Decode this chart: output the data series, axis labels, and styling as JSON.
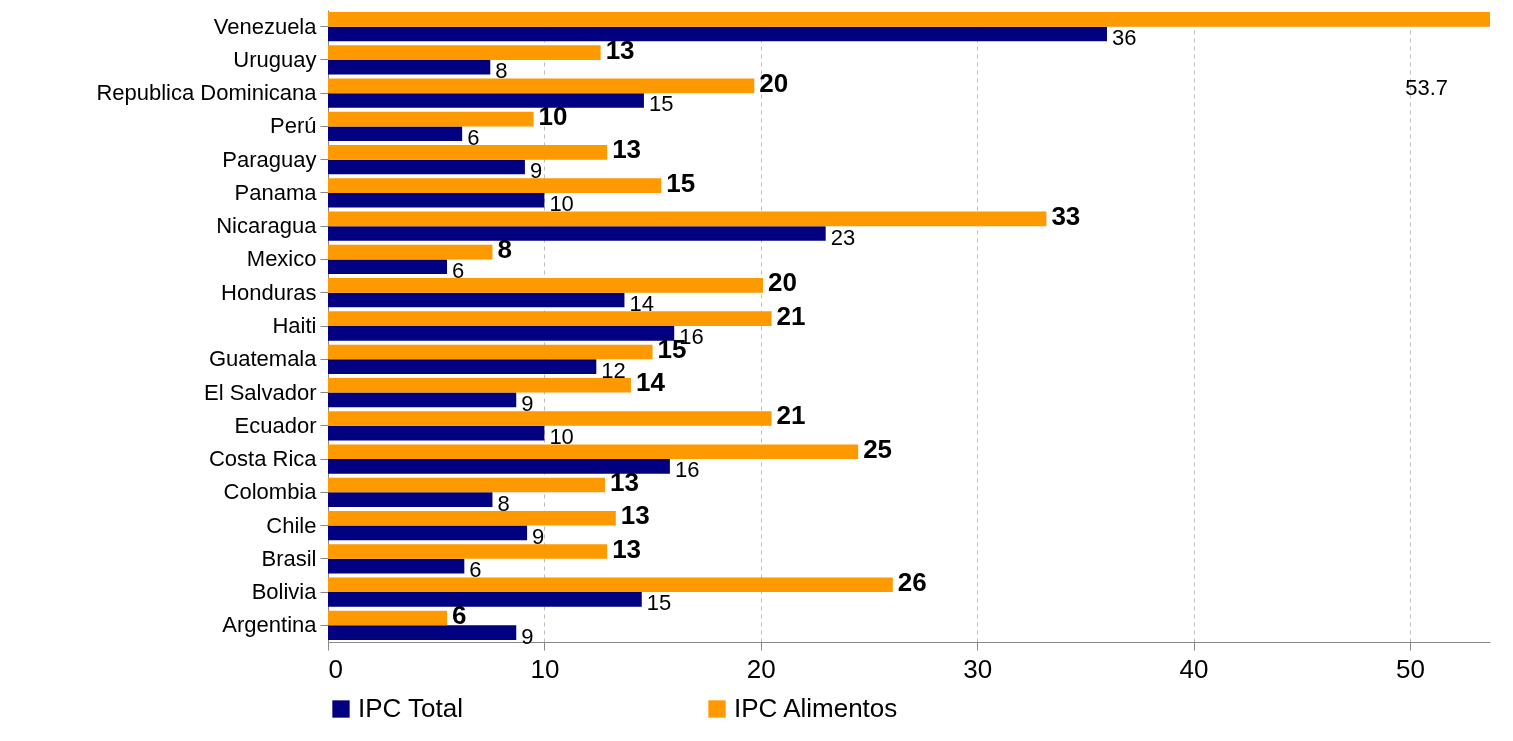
{
  "chart_data": {
    "type": "bar",
    "orientation": "horizontal",
    "categories": [
      "Venezuela",
      "Uruguay",
      "Republica Dominicana",
      "Perú",
      "Paraguay",
      "Panama",
      "Nicaragua",
      "Mexico",
      "Honduras",
      "Haiti",
      "Guatemala",
      "El Salvador",
      "Ecuador",
      "Costa Rica",
      "Colombia",
      "Chile",
      "Brasil",
      "Bolivia",
      "Argentina"
    ],
    "series": [
      {
        "name": "IPC Total",
        "color": "#000080",
        "values": [
          36.0,
          7.5,
          14.6,
          6.2,
          9.1,
          10.0,
          23.0,
          5.5,
          13.7,
          16.0,
          12.4,
          8.7,
          10.0,
          15.8,
          7.6,
          9.2,
          6.3,
          14.5,
          8.7
        ],
        "value_labels": [
          "36",
          "8",
          "15",
          "6",
          "9",
          "10",
          "23",
          "6",
          "14",
          "16",
          "12",
          "9",
          "10",
          "16",
          "8",
          "9",
          "6",
          "15",
          "9"
        ]
      },
      {
        "name": "IPC Alimentos",
        "color": "#ff9900",
        "values": [
          53.7,
          12.6,
          19.7,
          9.5,
          12.9,
          15.4,
          33.2,
          7.6,
          20.1,
          20.5,
          15.0,
          14.0,
          20.5,
          24.5,
          12.8,
          13.3,
          12.9,
          26.1,
          5.5
        ],
        "value_labels": [
          null,
          "13",
          "20",
          "10",
          "13",
          "15",
          "33",
          "8",
          "20",
          "21",
          "15",
          "14",
          "21",
          "25",
          "13",
          "13",
          "13",
          "26",
          "6"
        ]
      }
    ],
    "xlim": [
      0,
      53.7
    ],
    "xticks": [
      0,
      10,
      20,
      30,
      40,
      50
    ],
    "grid": "x",
    "legend": "bottom",
    "annotations": [
      "53.7"
    ]
  }
}
